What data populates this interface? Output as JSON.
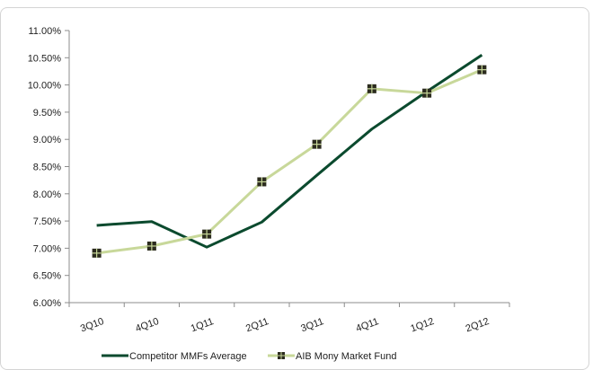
{
  "chart_data": {
    "type": "line",
    "categories": [
      "3Q10",
      "4Q10",
      "1Q11",
      "2Q11",
      "3Q11",
      "4Q11",
      "1Q12",
      "2Q12"
    ],
    "series": [
      {
        "name": "Competitor MMFs Average",
        "values": [
          7.42,
          7.49,
          7.02,
          7.48,
          8.34,
          9.19,
          9.88,
          10.55
        ],
        "color": "#0b4a2e",
        "marker": "none"
      },
      {
        "name": "AIB Mony Market Fund",
        "values": [
          6.91,
          7.04,
          7.26,
          8.22,
          8.91,
          9.93,
          9.85,
          10.28
        ],
        "color": "#c8d89a",
        "marker": "square",
        "marker_color": "#2b2b1e"
      }
    ],
    "y_tick_labels": [
      "6.00%",
      "6.50%",
      "7.00%",
      "7.50%",
      "8.00%",
      "8.50%",
      "9.00%",
      "9.50%",
      "10.00%",
      "10.50%",
      "11.00%"
    ],
    "ylim": [
      6.0,
      11.0
    ],
    "y_step": 0.5,
    "grid": false,
    "legend_position": "bottom",
    "title": "",
    "xlabel": "",
    "ylabel": ""
  }
}
